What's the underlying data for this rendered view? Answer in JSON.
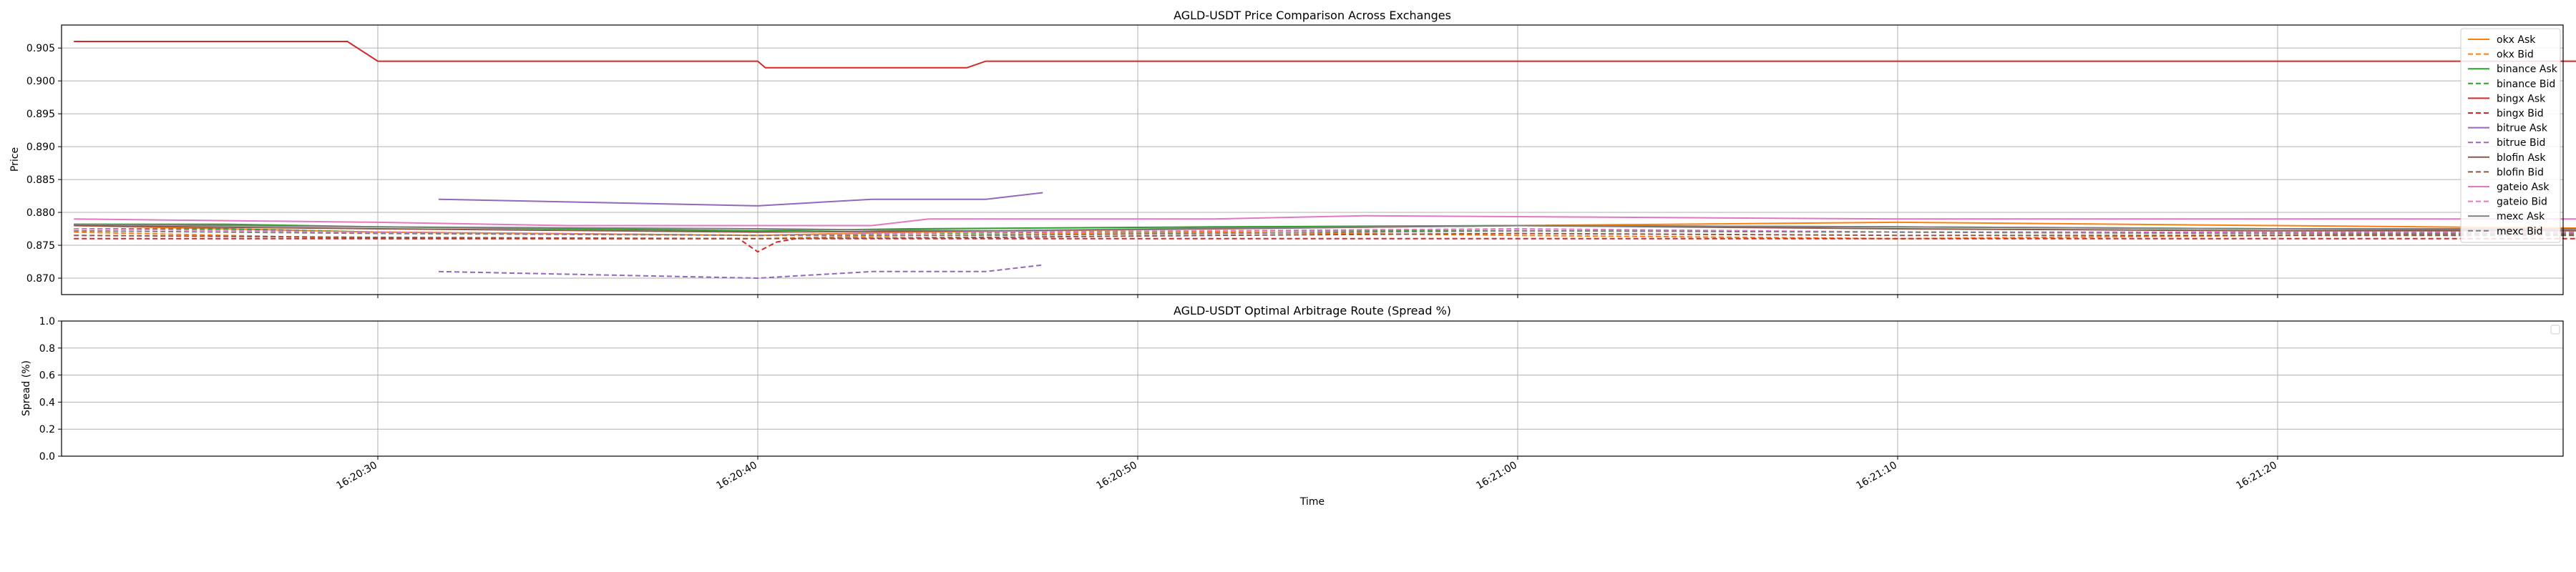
{
  "chart_data": [
    {
      "type": "line",
      "title": "AGLD-USDT Price Comparison Across Exchanges",
      "xlabel": "",
      "ylabel": "Price",
      "ylim": [
        0.8675,
        0.9085
      ],
      "yticks": [
        0.87,
        0.875,
        0.88,
        0.885,
        0.89,
        0.895,
        0.9,
        0.905
      ],
      "x_ticks": [
        "16:20:30",
        "16:20:40",
        "16:20:50",
        "16:21:00",
        "16:21:10",
        "16:21:20"
      ],
      "grid": true,
      "legend_position": "top-right",
      "series": [
        {
          "name": "okx Ask",
          "color": "#ff7f0e",
          "dash": "solid",
          "points": [
            [
              -8,
              0.878
            ],
            [
              -4,
              0.8775
            ],
            [
              0,
              0.877
            ],
            [
              10,
              0.8765
            ],
            [
              14,
              0.877
            ],
            [
              22,
              0.8775
            ],
            [
              30,
              0.878
            ],
            [
              40,
              0.8785
            ],
            [
              50,
              0.878
            ],
            [
              60,
              0.8775
            ],
            [
              63.5,
              0.8775
            ]
          ]
        },
        {
          "name": "okx Bid",
          "color": "#ff7f0e",
          "dash": "dashed",
          "points": [
            [
              -8,
              0.877
            ],
            [
              -4,
              0.8765
            ],
            [
              0,
              0.876
            ],
            [
              10,
              0.876
            ],
            [
              14,
              0.8765
            ],
            [
              22,
              0.877
            ],
            [
              30,
              0.8765
            ],
            [
              40,
              0.876
            ],
            [
              50,
              0.8765
            ],
            [
              60,
              0.877
            ],
            [
              63.5,
              0.8765
            ]
          ]
        },
        {
          "name": "binance Ask",
          "color": "#2ca02c",
          "dash": "solid",
          "points": [
            [
              -8,
              0.8782
            ],
            [
              -4,
              0.8782
            ],
            [
              0,
              0.8778
            ],
            [
              10,
              0.8772
            ],
            [
              14,
              0.8775
            ],
            [
              22,
              0.8778
            ],
            [
              30,
              0.878
            ],
            [
              40,
              0.8778
            ],
            [
              50,
              0.8775
            ],
            [
              60,
              0.8772
            ],
            [
              63.5,
              0.8775
            ]
          ]
        },
        {
          "name": "binance Bid",
          "color": "#2ca02c",
          "dash": "dashed",
          "points": [
            [
              -8,
              0.8775
            ],
            [
              -4,
              0.8775
            ],
            [
              0,
              0.877
            ],
            [
              10,
              0.8765
            ],
            [
              14,
              0.8768
            ],
            [
              22,
              0.8772
            ],
            [
              30,
              0.8772
            ],
            [
              40,
              0.877
            ],
            [
              50,
              0.8768
            ],
            [
              60,
              0.8766
            ],
            [
              63.5,
              0.877
            ]
          ]
        },
        {
          "name": "bingx Ask",
          "color": "#d62728",
          "dash": "solid",
          "points": [
            [
              -8,
              0.906
            ],
            [
              -0.8,
              0.906
            ],
            [
              0,
              0.903
            ],
            [
              10,
              0.903
            ],
            [
              10.2,
              0.902
            ],
            [
              15.5,
              0.902
            ],
            [
              16,
              0.903
            ],
            [
              63.5,
              0.903
            ]
          ]
        },
        {
          "name": "bingx Bid",
          "color": "#d62728",
          "dash": "dashed",
          "points": [
            [
              -8,
              0.876
            ],
            [
              9.5,
              0.876
            ],
            [
              10,
              0.874
            ],
            [
              10.5,
              0.8755
            ],
            [
              11,
              0.876
            ],
            [
              63.5,
              0.876
            ]
          ]
        },
        {
          "name": "bitrue Ask",
          "color": "#9467bd",
          "dash": "solid",
          "points": [
            [
              1.6,
              0.882
            ],
            [
              10,
              0.881
            ],
            [
              13,
              0.882
            ],
            [
              16,
              0.882
            ],
            [
              17.5,
              0.883
            ]
          ]
        },
        {
          "name": "bitrue Bid",
          "color": "#9467bd",
          "dash": "dashed",
          "points": [
            [
              1.6,
              0.871
            ],
            [
              10,
              0.87
            ],
            [
              13,
              0.871
            ],
            [
              16,
              0.871
            ],
            [
              17.5,
              0.872
            ]
          ]
        },
        {
          "name": "blofin Ask",
          "color": "#8c564b",
          "dash": "solid",
          "points": [
            [
              -8,
              0.878
            ],
            [
              0,
              0.8775
            ],
            [
              10,
              0.877
            ],
            [
              16,
              0.8772
            ],
            [
              22,
              0.8775
            ],
            [
              30,
              0.878
            ],
            [
              40,
              0.8775
            ],
            [
              50,
              0.8772
            ],
            [
              60,
              0.8772
            ],
            [
              63.5,
              0.8775
            ]
          ]
        },
        {
          "name": "blofin Bid",
          "color": "#8c564b",
          "dash": "dashed",
          "points": [
            [
              -8,
              0.8765
            ],
            [
              0,
              0.8762
            ],
            [
              10,
              0.876
            ],
            [
              16,
              0.8762
            ],
            [
              22,
              0.8765
            ],
            [
              30,
              0.8768
            ],
            [
              40,
              0.8765
            ],
            [
              50,
              0.8765
            ],
            [
              60,
              0.8765
            ],
            [
              63.5,
              0.8768
            ]
          ]
        },
        {
          "name": "gateio Ask",
          "color": "#e377c2",
          "dash": "solid",
          "points": [
            [
              -8,
              0.879
            ],
            [
              0,
              0.8785
            ],
            [
              5,
              0.878
            ],
            [
              13,
              0.878
            ],
            [
              14.5,
              0.879
            ],
            [
              22,
              0.879
            ],
            [
              26,
              0.8795
            ],
            [
              40,
              0.879
            ],
            [
              50,
              0.879
            ],
            [
              60,
              0.879
            ],
            [
              63,
              0.8795
            ],
            [
              63.5,
              0.8795
            ]
          ]
        },
        {
          "name": "gateio Bid",
          "color": "#e377c2",
          "dash": "dashed",
          "points": [
            [
              -8,
              0.8775
            ],
            [
              0,
              0.877
            ],
            [
              10,
              0.8765
            ],
            [
              16,
              0.877
            ],
            [
              22,
              0.8772
            ],
            [
              30,
              0.8775
            ],
            [
              40,
              0.877
            ],
            [
              50,
              0.877
            ],
            [
              60,
              0.877
            ],
            [
              63.5,
              0.8772
            ]
          ]
        },
        {
          "name": "mexc Ask",
          "color": "#7f7f7f",
          "dash": "solid",
          "points": [
            [
              -8,
              0.8782
            ],
            [
              0,
              0.8778
            ],
            [
              10,
              0.8775
            ],
            [
              16,
              0.8772
            ],
            [
              22,
              0.8776
            ],
            [
              30,
              0.878
            ],
            [
              40,
              0.8778
            ],
            [
              50,
              0.8775
            ],
            [
              60,
              0.8775
            ],
            [
              63.5,
              0.8775
            ]
          ]
        },
        {
          "name": "mexc Bid",
          "color": "#7f7f7f",
          "dash": "dashed",
          "points": [
            [
              -8,
              0.8772
            ],
            [
              0,
              0.8768
            ],
            [
              10,
              0.8765
            ],
            [
              16,
              0.8765
            ],
            [
              22,
              0.8768
            ],
            [
              30,
              0.8772
            ],
            [
              40,
              0.877
            ],
            [
              50,
              0.8768
            ],
            [
              60,
              0.8768
            ],
            [
              63.5,
              0.877
            ]
          ]
        }
      ]
    },
    {
      "type": "line",
      "title": "AGLD-USDT Optimal Arbitrage Route (Spread %)",
      "xlabel": "Time",
      "ylabel": "Spread (%)",
      "ylim": [
        0.0,
        1.0
      ],
      "yticks": [
        0.0,
        0.2,
        0.4,
        0.6,
        0.8,
        1.0
      ],
      "x_ticks": [
        "16:20:30",
        "16:20:40",
        "16:20:50",
        "16:21:00",
        "16:21:10",
        "16:21:20"
      ],
      "grid": true,
      "series": []
    }
  ]
}
